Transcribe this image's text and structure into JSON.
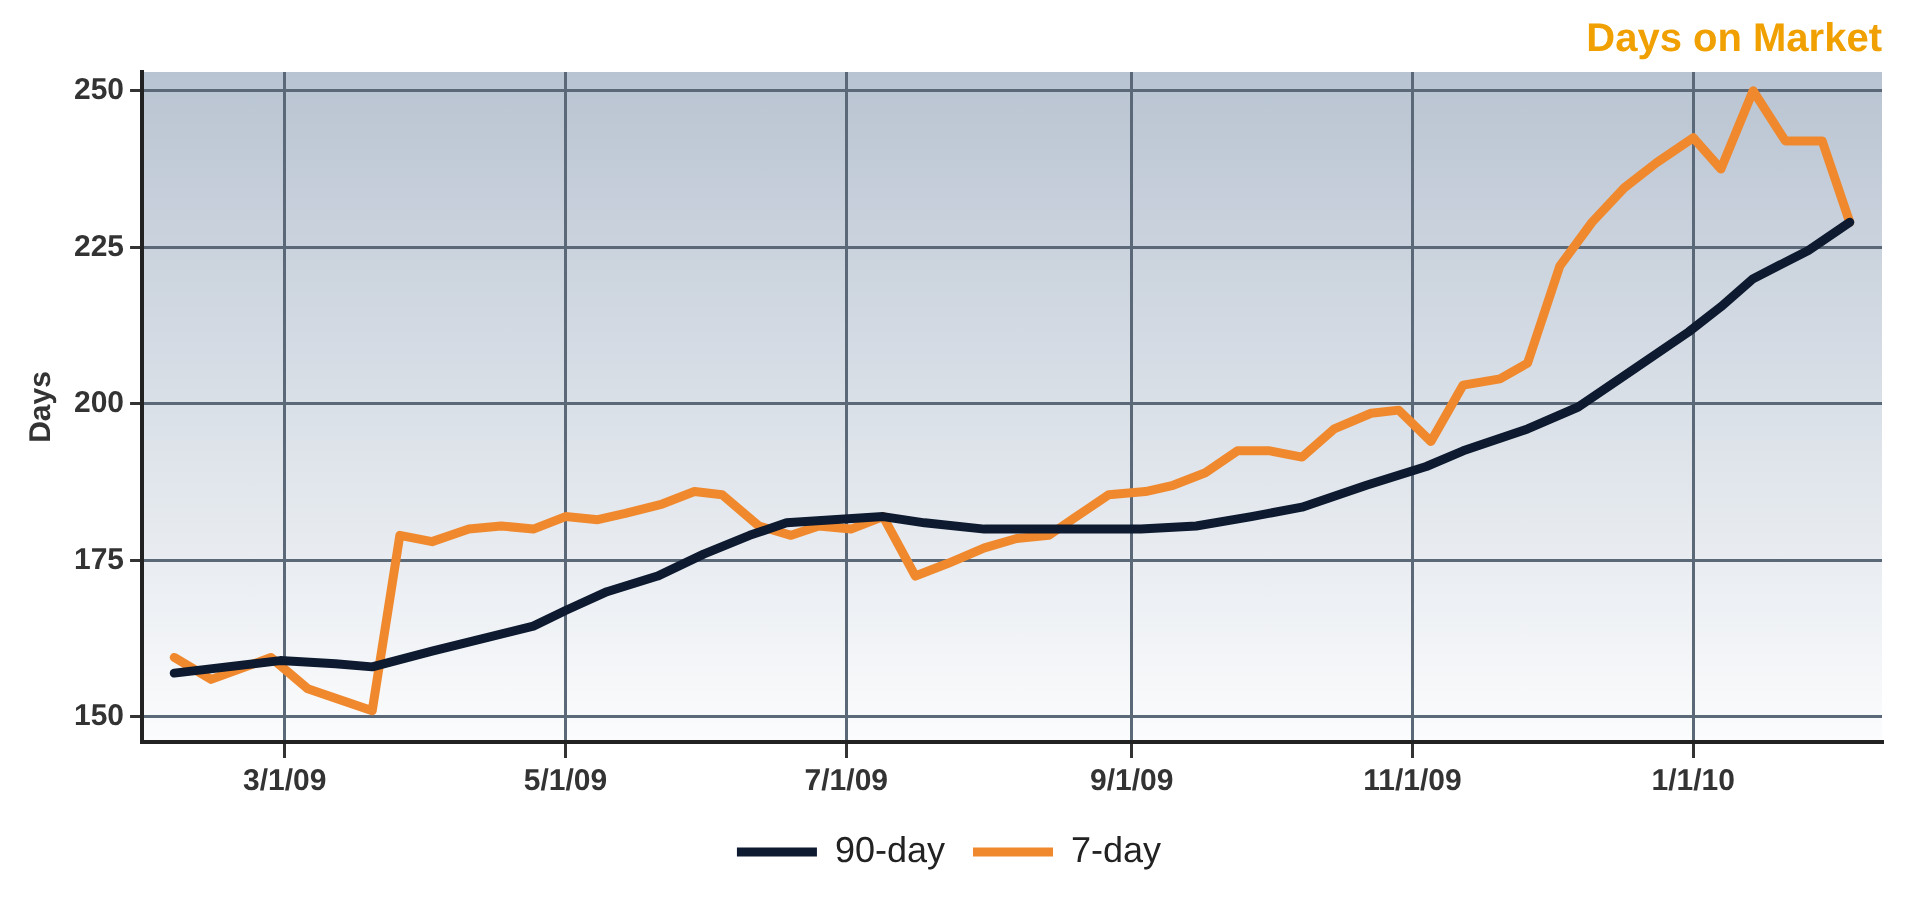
{
  "chart_data": {
    "type": "line",
    "title": "Days on Market",
    "ylabel": "Days",
    "xlim": [
      "2009-01-29",
      "2010-02-11"
    ],
    "xticks": [
      {
        "value": "2009-03-01",
        "label": "3/1/09"
      },
      {
        "value": "2009-05-01",
        "label": "5/1/09"
      },
      {
        "value": "2009-07-01",
        "label": "7/1/09"
      },
      {
        "value": "2009-09-01",
        "label": "9/1/09"
      },
      {
        "value": "2009-11-01",
        "label": "11/1/09"
      },
      {
        "value": "2010-01-01",
        "label": "1/1/10"
      }
    ],
    "ylim": [
      146,
      253
    ],
    "yticks": [
      150,
      175,
      200,
      225,
      250
    ],
    "grid": true,
    "legend": "bottom",
    "series": [
      {
        "name": "90-day",
        "color": "#0d1a30",
        "x": [
          "2009-02-05",
          "2009-02-28",
          "2009-03-12",
          "2009-03-20",
          "2009-04-02",
          "2009-04-13",
          "2009-04-24",
          "2009-05-01",
          "2009-05-10",
          "2009-05-21",
          "2009-05-31",
          "2009-06-10",
          "2009-06-18",
          "2009-07-09",
          "2009-07-18",
          "2009-07-31",
          "2009-08-16",
          "2009-09-03",
          "2009-09-15",
          "2009-09-27",
          "2009-10-08",
          "2009-10-22",
          "2009-11-04",
          "2009-11-12",
          "2009-11-26",
          "2009-12-07",
          "2009-12-19",
          "2009-12-31",
          "2010-01-07",
          "2010-01-14",
          "2010-01-26",
          "2010-02-04"
        ],
        "values": [
          157,
          159,
          158.5,
          158,
          160.5,
          162.5,
          164.5,
          167,
          170,
          172.5,
          176,
          179,
          181,
          182,
          181,
          180,
          180,
          180,
          180.5,
          182,
          183.5,
          187,
          190,
          192.5,
          196,
          199.5,
          205.5,
          211.5,
          215.5,
          220,
          224.5,
          229
        ]
      },
      {
        "name": "7-day",
        "color": "#f0892e",
        "x": [
          "2009-02-05",
          "2009-02-13",
          "2009-02-26",
          "2009-03-06",
          "2009-03-20",
          "2009-03-26",
          "2009-04-02",
          "2009-04-10",
          "2009-04-17",
          "2009-04-24",
          "2009-05-01",
          "2009-05-08",
          "2009-05-14",
          "2009-05-22",
          "2009-05-29",
          "2009-06-04",
          "2009-06-12",
          "2009-06-19",
          "2009-06-25",
          "2009-07-02",
          "2009-07-09",
          "2009-07-16",
          "2009-07-23",
          "2009-07-31",
          "2009-08-07",
          "2009-08-14",
          "2009-08-20",
          "2009-08-27",
          "2009-09-04",
          "2009-09-10",
          "2009-09-17",
          "2009-09-24",
          "2009-10-01",
          "2009-10-08",
          "2009-10-15",
          "2009-10-23",
          "2009-10-29",
          "2009-11-05",
          "2009-11-12",
          "2009-11-20",
          "2009-11-26",
          "2009-12-03",
          "2009-12-10",
          "2009-12-17",
          "2009-12-24",
          "2010-01-01",
          "2010-01-07",
          "2010-01-14",
          "2010-01-21",
          "2010-01-29",
          "2010-02-04"
        ],
        "values": [
          159.5,
          156,
          159.5,
          154.5,
          151,
          179,
          178,
          180,
          180.5,
          180,
          182,
          181.5,
          182.5,
          184,
          186,
          185.5,
          180.5,
          179,
          180.5,
          180,
          182,
          172.5,
          174.5,
          177,
          178.5,
          179,
          182,
          185.5,
          186,
          187,
          189,
          192.5,
          192.5,
          191.5,
          196,
          198.5,
          199,
          194,
          203,
          204,
          206.5,
          222,
          229,
          234.5,
          238.5,
          242.5,
          237.5,
          250,
          242,
          242,
          229
        ]
      }
    ]
  }
}
